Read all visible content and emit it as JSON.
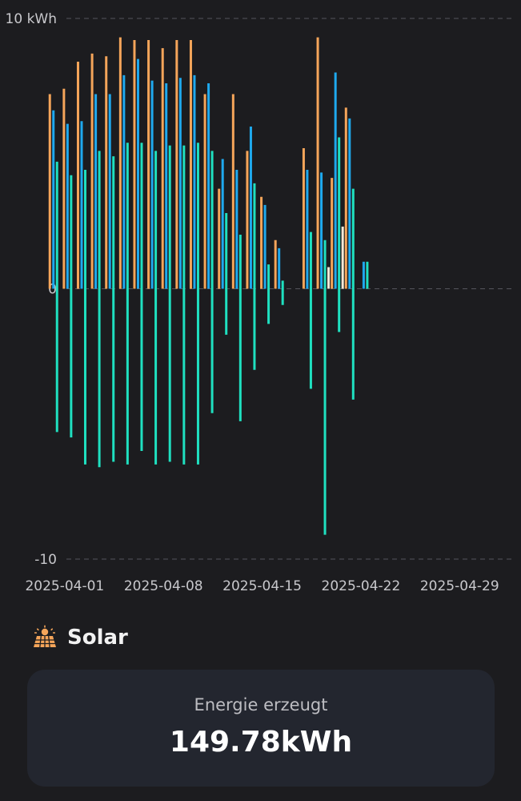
{
  "chart_data": {
    "type": "bar",
    "ylabel": "",
    "xlabel": "",
    "y_ticks": [
      "10 kWh",
      "0",
      "-10"
    ],
    "ylim": [
      -10,
      10
    ],
    "x_ticks": [
      "2025-04-01",
      "2025-04-08",
      "2025-04-15",
      "2025-04-22",
      "2025-04-29"
    ],
    "x_range": [
      "2025-03-29",
      "2025-05-05"
    ],
    "grid": true,
    "legend": "none",
    "colors": {
      "orange": "#f5a55a",
      "blue": "#1fa9ee",
      "teal": "#1fe0c0",
      "cream": "#f4e9d6",
      "grid": "#55555c"
    },
    "days": [
      {
        "date": "2025-03-31",
        "orange": 7.2,
        "blue": 6.6,
        "teal_pos": 4.7,
        "teal_neg": -5.3
      },
      {
        "date": "2025-04-01",
        "orange": 7.4,
        "blue": 6.1,
        "teal_pos": 4.2,
        "teal_neg": -5.5
      },
      {
        "date": "2025-04-02",
        "orange": 8.4,
        "blue": 6.2,
        "teal_pos": 4.4,
        "teal_neg": -6.5
      },
      {
        "date": "2025-04-03",
        "orange": 8.7,
        "blue": 7.2,
        "teal_pos": 5.1,
        "teal_neg": -6.6
      },
      {
        "date": "2025-04-04",
        "orange": 8.6,
        "blue": 7.2,
        "teal_pos": 4.9,
        "teal_neg": -6.4
      },
      {
        "date": "2025-04-05",
        "orange": 9.3,
        "blue": 7.9,
        "teal_pos": 5.4,
        "teal_neg": -6.5
      },
      {
        "date": "2025-04-06",
        "orange": 9.2,
        "blue": 8.5,
        "teal_pos": 5.4,
        "teal_neg": -6.0
      },
      {
        "date": "2025-04-07",
        "orange": 9.2,
        "blue": 7.7,
        "teal_pos": 5.1,
        "teal_neg": -6.5
      },
      {
        "date": "2025-04-08",
        "orange": 8.9,
        "blue": 7.6,
        "teal_pos": 5.3,
        "teal_neg": -6.4
      },
      {
        "date": "2025-04-09",
        "orange": 9.2,
        "blue": 7.8,
        "teal_pos": 5.3,
        "teal_neg": -6.5
      },
      {
        "date": "2025-04-10",
        "orange": 9.2,
        "blue": 7.9,
        "teal_pos": 5.4,
        "teal_neg": -6.5
      },
      {
        "date": "2025-04-11",
        "orange": 7.2,
        "blue": 7.6,
        "teal_pos": 5.1,
        "teal_neg": -4.6
      },
      {
        "date": "2025-04-12",
        "orange": 3.7,
        "blue": 4.8,
        "teal_pos": 2.8,
        "teal_neg": -1.7
      },
      {
        "date": "2025-04-13",
        "orange": 7.2,
        "blue": 4.4,
        "teal_pos": 2.0,
        "teal_neg": -4.9
      },
      {
        "date": "2025-04-14",
        "orange": 5.1,
        "blue": 6.0,
        "teal_pos": 3.9,
        "teal_neg": -3.0
      },
      {
        "date": "2025-04-15",
        "orange": 3.4,
        "blue": 3.1,
        "teal_pos": 0.9,
        "teal_neg": -1.3
      },
      {
        "date": "2025-04-16",
        "orange": 1.8,
        "blue": 1.5,
        "teal_pos": 0.3,
        "teal_neg": -0.6
      },
      {
        "date": "2025-04-17",
        "orange": 0,
        "blue": 0,
        "teal_pos": 0,
        "teal_neg": 0
      },
      {
        "date": "2025-04-18",
        "orange": 5.2,
        "blue": 4.4,
        "teal_pos": 2.1,
        "teal_neg": -3.7
      },
      {
        "date": "2025-04-19",
        "orange": 9.3,
        "blue": 4.3,
        "teal_pos": 1.8,
        "teal_neg": -9.1,
        "cream": 0.8
      },
      {
        "date": "2025-04-20",
        "orange": 4.1,
        "blue": 8.0,
        "teal_pos": 5.6,
        "teal_neg": -1.6,
        "cream": 2.3
      },
      {
        "date": "2025-04-21",
        "orange": 6.7,
        "blue": 6.3,
        "teal_pos": 3.7,
        "teal_neg": -4.1
      },
      {
        "date": "2025-04-22",
        "orange": 0,
        "blue": 1.0,
        "teal_pos": 1.0,
        "teal_neg": 0
      }
    ]
  },
  "solar": {
    "title": "Solar",
    "icon": "solar-panel-icon"
  },
  "summary": {
    "label": "Energie erzeugt",
    "value": "149.78kWh"
  }
}
